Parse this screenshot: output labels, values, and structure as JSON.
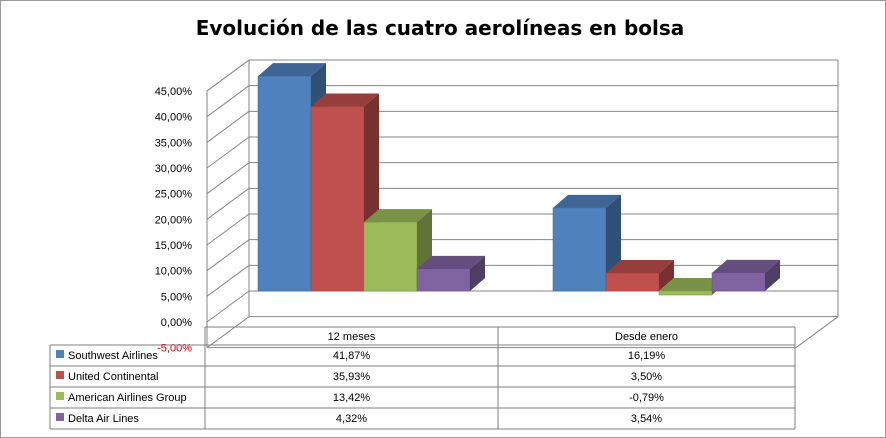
{
  "chart_data": {
    "type": "bar",
    "title": "Evolución de las cuatro aerolíneas en bolsa",
    "categories": [
      "12 meses",
      "Desde enero"
    ],
    "series": [
      {
        "name": "Southwest Airlines",
        "values": [
          41.87,
          16.19
        ],
        "labels": [
          "41,87%",
          "16,19%"
        ],
        "color": "#4f81bd"
      },
      {
        "name": "United Continental",
        "values": [
          35.93,
          3.5
        ],
        "labels": [
          "35,93%",
          "3,50%"
        ],
        "color": "#c0504d"
      },
      {
        "name": "American Airlines Group",
        "values": [
          13.42,
          -0.79
        ],
        "labels": [
          "13,42%",
          "-0,79%"
        ],
        "color": "#9bbb59"
      },
      {
        "name": "Delta Air Lines",
        "values": [
          4.32,
          3.54
        ],
        "labels": [
          "4,32%",
          "3,54%"
        ],
        "color": "#8064a2"
      }
    ],
    "yticks": [
      "-5,00%",
      "0,00%",
      "5,00%",
      "10,00%",
      "15,00%",
      "20,00%",
      "25,00%",
      "30,00%",
      "35,00%",
      "40,00%",
      "45,00%"
    ],
    "ylim": [
      -5,
      45
    ],
    "grid": true,
    "legend": "data-table",
    "negative_tick_color": "#d40000"
  }
}
